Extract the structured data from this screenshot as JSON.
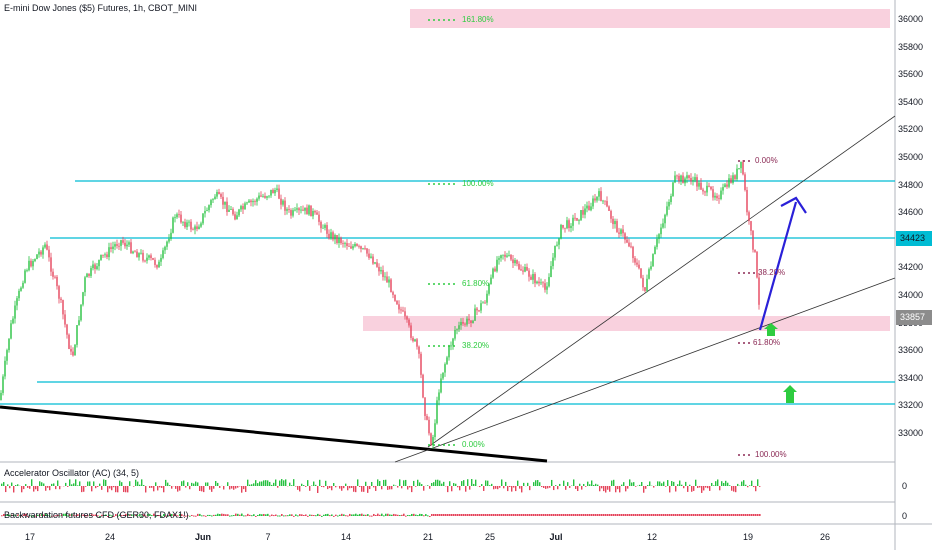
{
  "title": "E-mini Dow Jones ($5) Futures, 1h, CBOT_MINI",
  "indicators": {
    "ac_label": "Accelerator Oscillator (AC) (34, 5)",
    "ac_zero": "0",
    "bw_label": "Backwardation futures CFD (GER30, FDAX1!)",
    "bw_zero": "0"
  },
  "price_axis": [
    "36000",
    "35800",
    "35600",
    "35400",
    "35200",
    "35000",
    "34800",
    "34600",
    "34400",
    "34200",
    "34000",
    "33800",
    "33600",
    "33400",
    "33200",
    "33000"
  ],
  "price_tags": {
    "upper": "34423",
    "current": "33857"
  },
  "time_axis": [
    {
      "label": "17",
      "bold": false
    },
    {
      "label": "24",
      "bold": false
    },
    {
      "label": "Jun",
      "bold": true
    },
    {
      "label": "7",
      "bold": false
    },
    {
      "label": "14",
      "bold": false
    },
    {
      "label": "21",
      "bold": false
    },
    {
      "label": "25",
      "bold": false
    },
    {
      "label": "Jul",
      "bold": true
    },
    {
      "label": "12",
      "bold": false
    },
    {
      "label": "19",
      "bold": false
    },
    {
      "label": "26",
      "bold": false
    }
  ],
  "fib_left": [
    "161.80%",
    "100.00%",
    "61.80%",
    "38.20%",
    "0.00%"
  ],
  "fib_right": [
    "0.00%",
    "38.20%",
    "61.80%",
    "100.00%"
  ],
  "colors": {
    "green": "#26c140",
    "red": "#e5435a",
    "cyan": "#00bcd4",
    "pink": "#f8c6d6",
    "arrow": "#2a20d8",
    "fib_green": "#2ecc40",
    "fib_maroon": "#8b2a55"
  }
}
